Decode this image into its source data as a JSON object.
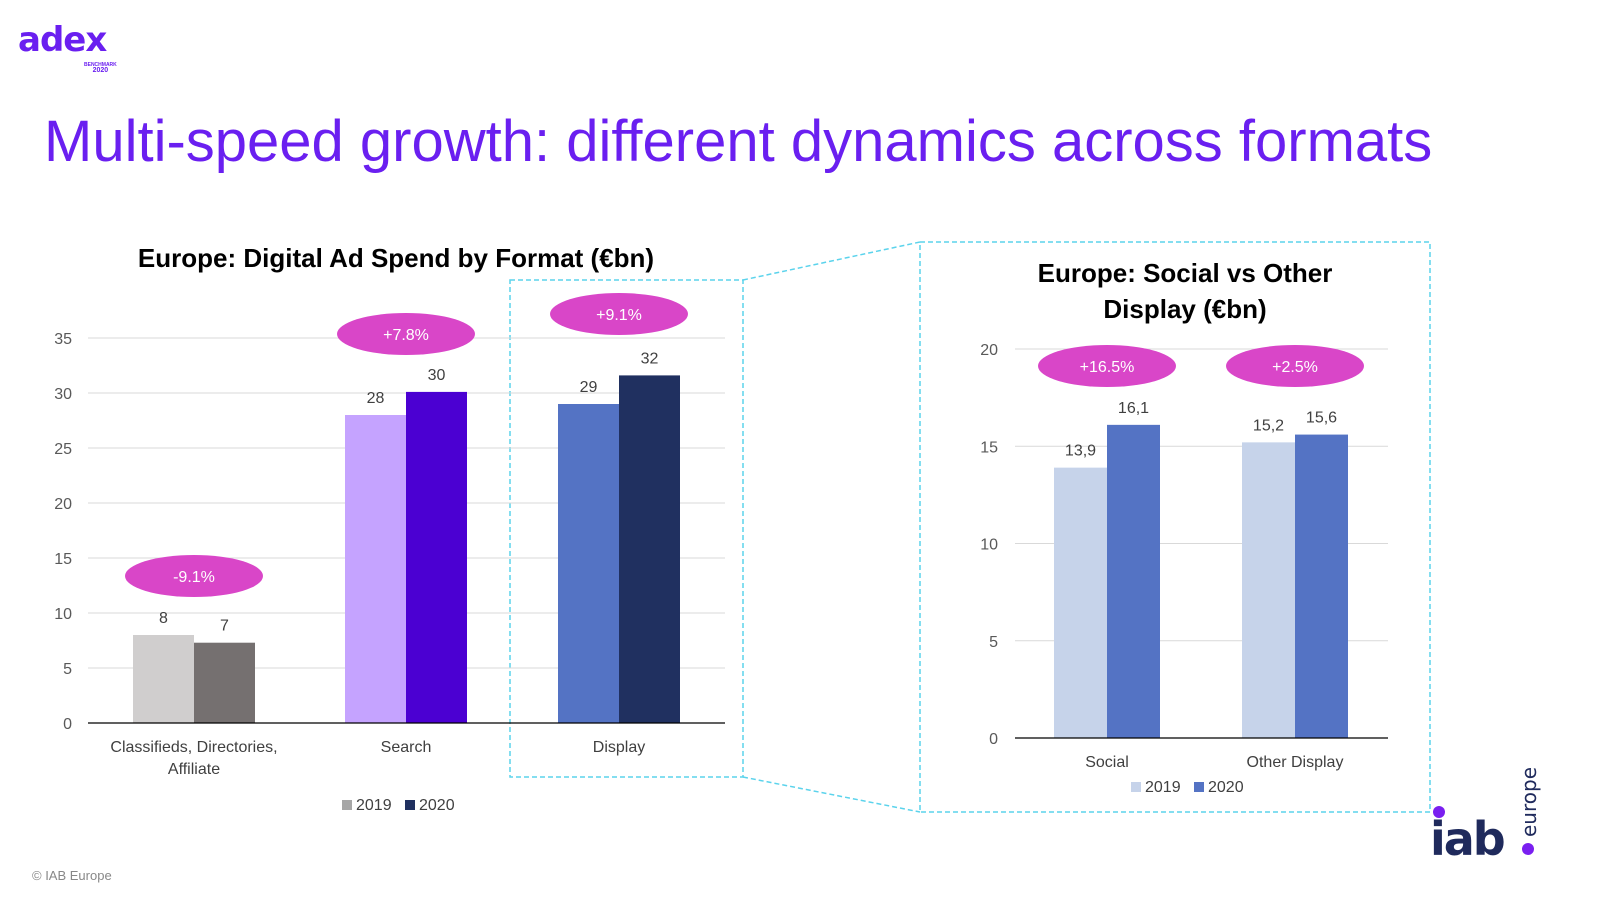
{
  "logo": {
    "word": "adex",
    "sub1": "BENCHMARK",
    "sub2": "2020"
  },
  "title": "Multi-speed growth: different dynamics across formats",
  "copyright": "© IAB Europe",
  "iab_logo": {
    "word": "iab",
    "sub": "europe"
  },
  "chart_data": [
    {
      "type": "bar",
      "title": "Europe: Digital Ad Spend by Format (€bn)",
      "categories": [
        "Classifieds, Directories, Affiliate",
        "Search",
        "Display"
      ],
      "series": [
        {
          "name": "2019",
          "values": [
            8,
            28,
            29
          ],
          "labels": [
            "8",
            "28",
            "29"
          ],
          "colors": [
            "#d0cece",
            "#c5a3ff",
            "#5473c4"
          ]
        },
        {
          "name": "2020",
          "values": [
            7.3,
            30.1,
            31.6
          ],
          "labels": [
            "7",
            "30",
            "32"
          ],
          "colors": [
            "#757070",
            "#4b00d2",
            "#203060"
          ]
        }
      ],
      "growth": [
        "-9.1%",
        "+7.8%",
        "+9.1%"
      ],
      "ylim": [
        0,
        35
      ],
      "yticks": [
        0,
        5,
        10,
        15,
        20,
        25,
        30,
        35
      ],
      "grid": true,
      "legend": "bottom",
      "legend_colors": [
        "#a6a6a6",
        "#203060"
      ]
    },
    {
      "type": "bar",
      "title": "Europe: Social vs Other Display (€bn)",
      "categories": [
        "Social",
        "Other Display"
      ],
      "series": [
        {
          "name": "2019",
          "values": [
            13.9,
            15.2
          ],
          "labels": [
            "13,9",
            "15,2"
          ],
          "color": "#c6d3ea"
        },
        {
          "name": "2020",
          "values": [
            16.1,
            15.6
          ],
          "labels": [
            "16,1",
            "15,6"
          ],
          "color": "#5473c4"
        }
      ],
      "growth": [
        "+16.5%",
        "+2.5%"
      ],
      "ylim": [
        0,
        20
      ],
      "yticks": [
        0,
        5,
        10,
        15,
        20
      ],
      "grid": true,
      "legend": "bottom"
    }
  ],
  "colors": {
    "title": "#6a1ff0",
    "pill": "#d946c8",
    "callout": "#5bd3ec"
  }
}
